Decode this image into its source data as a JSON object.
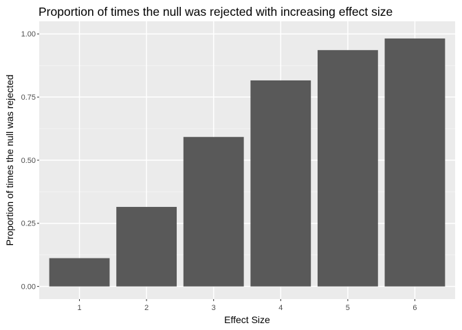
{
  "chart_data": {
    "type": "bar",
    "title": "Proportion of times the null was rejected with increasing effect size",
    "xlabel": "Effect Size",
    "ylabel": "Proportion of times the null was rejected",
    "categories": [
      "1",
      "2",
      "3",
      "4",
      "5",
      "6"
    ],
    "values": [
      0.112,
      0.315,
      0.592,
      0.816,
      0.936,
      0.982
    ],
    "ylim": [
      0,
      1.05
    ],
    "y_ticks": [
      0,
      0.25,
      0.5,
      0.75,
      1.0
    ],
    "y_tick_labels": [
      "0.00",
      "0.25",
      "0.50",
      "0.75",
      "1.00"
    ],
    "grid": true,
    "legend": "none",
    "colors": {
      "bar": "#595959",
      "panel": "#ebebeb",
      "grid_major": "#ffffff",
      "grid_minor": "#f5f5f5",
      "tick": "#333333",
      "tick_label": "#4d4d4d"
    }
  }
}
